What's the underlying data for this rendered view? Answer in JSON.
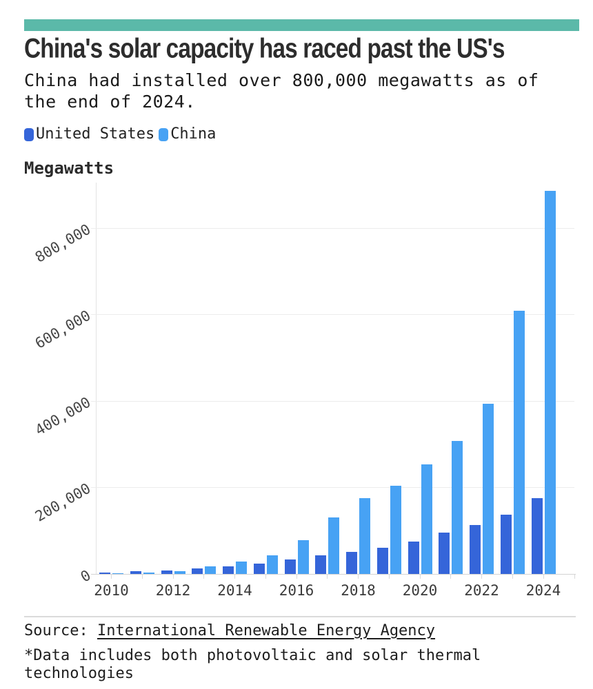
{
  "page": {
    "accent_bar_color": "#5BB9A9",
    "title": "China's solar capacity has raced past the US's",
    "subtitle": "China had installed over 800,000 megawatts as of the end of 2024.",
    "y_axis_title": "Megawatts",
    "source_prefix": "Source:",
    "source_link": "International Renewable Energy Agency",
    "footnote": "*Data includes both photovoltaic and solar thermal technologies"
  },
  "chart_data": {
    "type": "bar",
    "title": "China's solar capacity has raced past the US's",
    "subtitle": "China had installed over 800,000 megawatts as of the end of 2024.",
    "ylabel": "Megawatts",
    "xlabel": "",
    "unit": "megawatts",
    "categories": [
      2010,
      2011,
      2012,
      2013,
      2014,
      2015,
      2016,
      2017,
      2018,
      2019,
      2020,
      2021,
      2022,
      2023,
      2024
    ],
    "series": [
      {
        "name": "United States",
        "color": "#3565D9",
        "values": [
          3400,
          5700,
          8600,
          13000,
          18300,
          23400,
          33400,
          42700,
          51000,
          60500,
          74500,
          95200,
          113000,
          137700,
          176000
        ]
      },
      {
        "name": "China",
        "color": "#47A2F4",
        "values": [
          1000,
          3100,
          6700,
          17500,
          28400,
          43200,
          77800,
          130800,
          175300,
          204700,
          253900,
          307000,
          393000,
          609300,
          886700
        ]
      }
    ],
    "ylim": [
      0,
      905000
    ],
    "yticks": [
      0,
      200000,
      400000,
      600000,
      800000
    ],
    "ytick_labels": [
      "0",
      "200,000",
      "400,000",
      "600,000",
      "800,000"
    ],
    "xtick_labels": [
      "2010",
      "2012",
      "2014",
      "2016",
      "2018",
      "2020",
      "2022",
      "2024"
    ],
    "grid": true,
    "legend_position": "top-left",
    "bar_orientation": "vertical"
  }
}
